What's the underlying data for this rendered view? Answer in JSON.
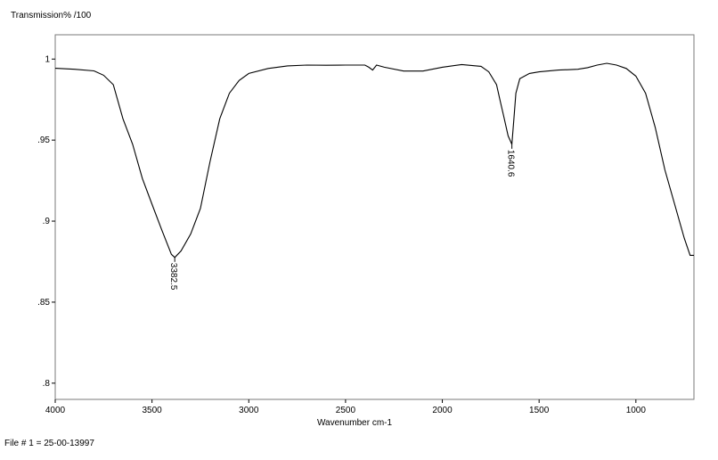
{
  "header": {
    "ylabel_top": "Transmission% /100"
  },
  "footer": {
    "file_label": "File # 1 = 25-00-13997"
  },
  "chart_data": {
    "type": "line",
    "title": "",
    "xlabel": "Wavenumber cm-1",
    "ylabel": "Transmission% /100",
    "xlim": [
      4000,
      700
    ],
    "ylim": [
      0.79,
      1.015
    ],
    "x_reversed": true,
    "grid": false,
    "xticks": [
      4000,
      3500,
      3000,
      2500,
      2000,
      1500,
      1000
    ],
    "xtick_labels": [
      "4000",
      "3500",
      "3000",
      "2500",
      "2000",
      "1500",
      "1000"
    ],
    "yticks": [
      0.8,
      0.85,
      0.9,
      0.95,
      1.0
    ],
    "ytick_labels": [
      ".8",
      ".85",
      ".9",
      ".95",
      "1"
    ],
    "series": [
      {
        "color": "#000000",
        "points": [
          [
            4000,
            0.9943
          ],
          [
            3900,
            0.9937
          ],
          [
            3800,
            0.9927
          ],
          [
            3750,
            0.99
          ],
          [
            3700,
            0.9842
          ],
          [
            3650,
            0.9632
          ],
          [
            3600,
            0.9474
          ],
          [
            3550,
            0.9263
          ],
          [
            3500,
            0.9105
          ],
          [
            3450,
            0.8947
          ],
          [
            3400,
            0.8795
          ],
          [
            3382.5,
            0.8776
          ],
          [
            3350,
            0.8816
          ],
          [
            3300,
            0.8921
          ],
          [
            3250,
            0.9079
          ],
          [
            3200,
            0.9368
          ],
          [
            3150,
            0.9632
          ],
          [
            3100,
            0.9789
          ],
          [
            3050,
            0.9868
          ],
          [
            3000,
            0.9911
          ],
          [
            2900,
            0.9942
          ],
          [
            2800,
            0.9958
          ],
          [
            2700,
            0.9963
          ],
          [
            2600,
            0.9962
          ],
          [
            2500,
            0.9963
          ],
          [
            2400,
            0.9963
          ],
          [
            2380,
            0.995
          ],
          [
            2360,
            0.9932
          ],
          [
            2340,
            0.9963
          ],
          [
            2300,
            0.995
          ],
          [
            2200,
            0.9926
          ],
          [
            2100,
            0.9926
          ],
          [
            2000,
            0.995
          ],
          [
            1900,
            0.9966
          ],
          [
            1800,
            0.9955
          ],
          [
            1760,
            0.9921
          ],
          [
            1720,
            0.9842
          ],
          [
            1700,
            0.9737
          ],
          [
            1680,
            0.9632
          ],
          [
            1660,
            0.9526
          ],
          [
            1640.6,
            0.9474
          ],
          [
            1630,
            0.9632
          ],
          [
            1620,
            0.9789
          ],
          [
            1600,
            0.9879
          ],
          [
            1550,
            0.9911
          ],
          [
            1500,
            0.9921
          ],
          [
            1400,
            0.9932
          ],
          [
            1300,
            0.9937
          ],
          [
            1250,
            0.9947
          ],
          [
            1200,
            0.9963
          ],
          [
            1150,
            0.9974
          ],
          [
            1100,
            0.9963
          ],
          [
            1050,
            0.9942
          ],
          [
            1000,
            0.9895
          ],
          [
            950,
            0.9789
          ],
          [
            900,
            0.9579
          ],
          [
            850,
            0.9316
          ],
          [
            800,
            0.9105
          ],
          [
            750,
            0.8895
          ],
          [
            720,
            0.8789
          ],
          [
            700,
            0.8789
          ]
        ]
      }
    ],
    "annotations": [
      {
        "x": 3382.5,
        "y": 0.8776,
        "text": "3382.5"
      },
      {
        "x": 1640.6,
        "y": 0.9474,
        "text": "1640.6"
      }
    ]
  }
}
